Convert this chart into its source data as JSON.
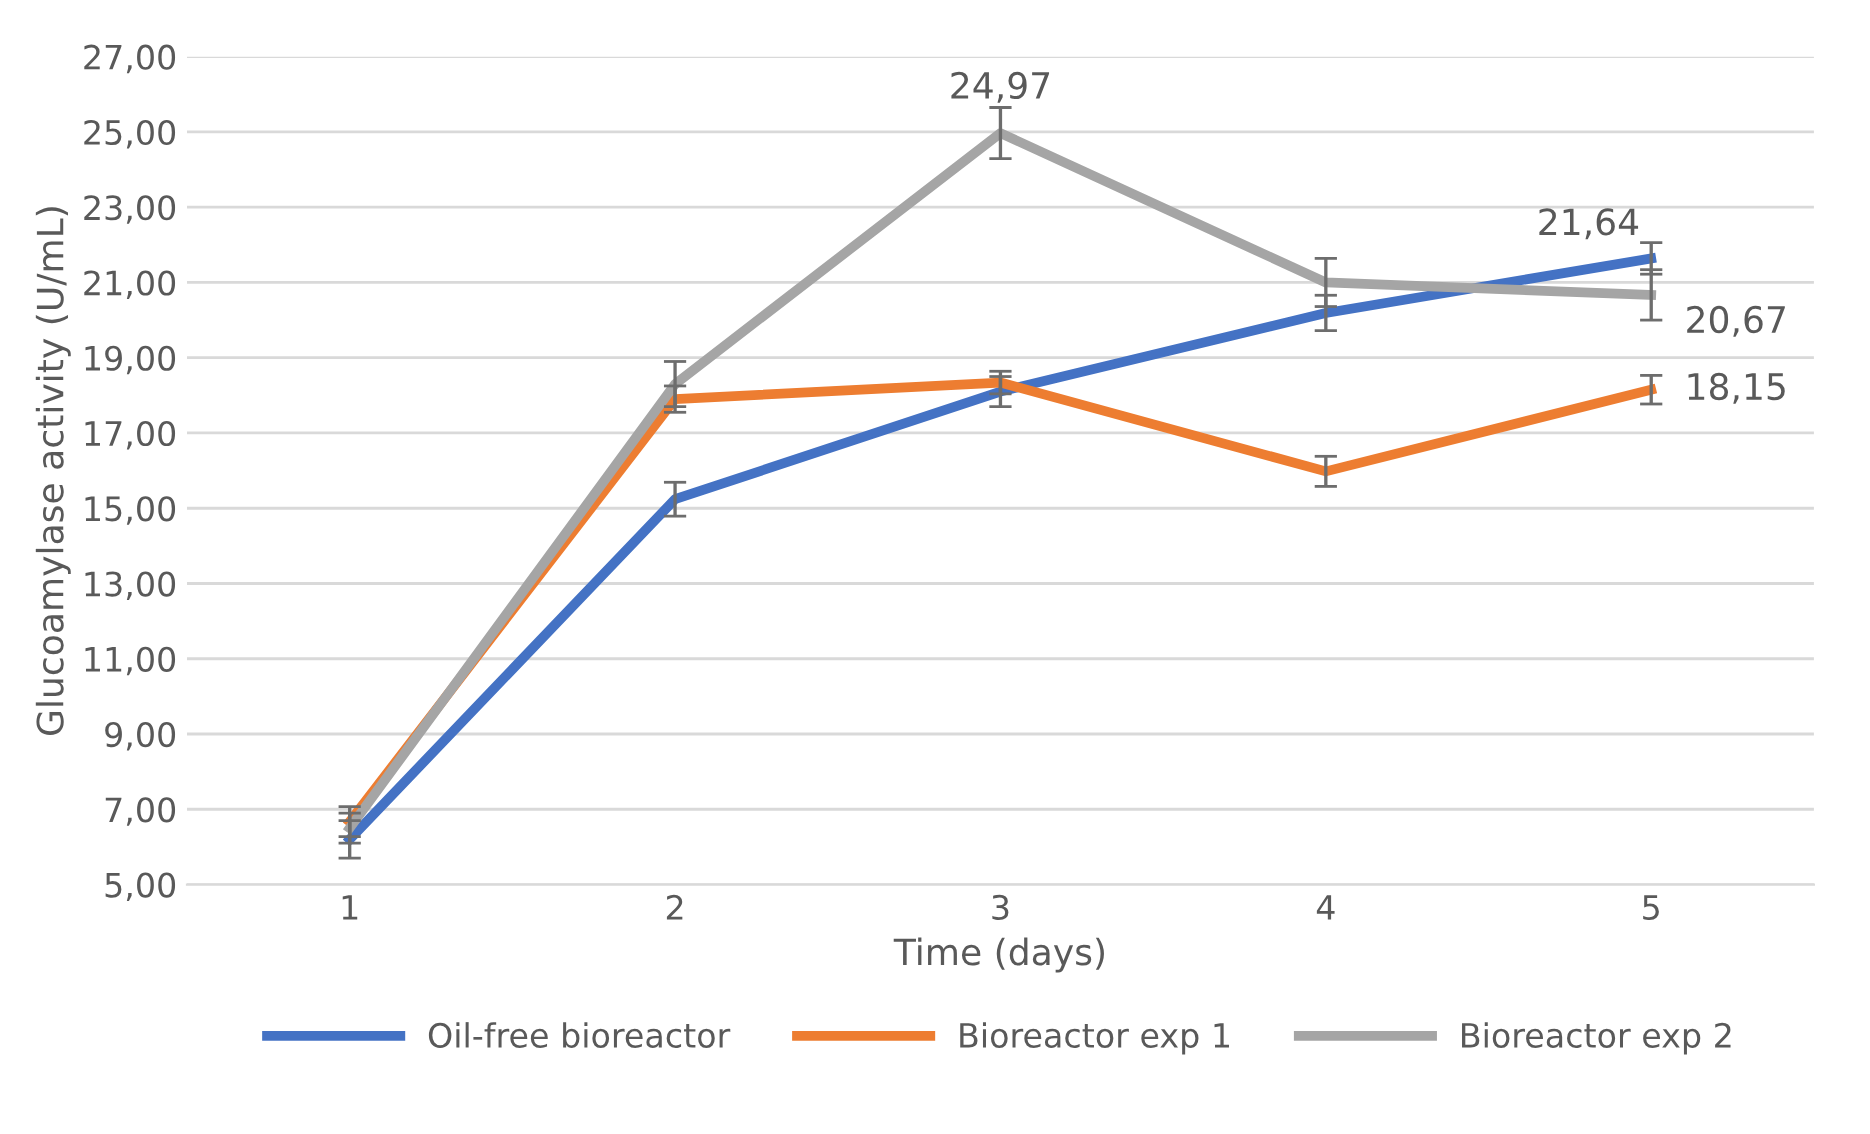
{
  "chart_data": {
    "type": "line",
    "xlabel": "Time (days)",
    "ylabel": "Glucoamylase activity (U/mL)",
    "categories": [
      "1",
      "2",
      "3",
      "4",
      "5"
    ],
    "series": [
      {
        "name": "Oil-free bioreactor",
        "color": "#4472c4",
        "values": [
          6.2,
          15.24,
          18.1,
          20.19,
          21.64
        ],
        "errors": [
          0.5,
          0.45,
          0.4,
          0.47,
          0.42
        ],
        "value_labels": [
          null,
          null,
          null,
          null,
          "21,64"
        ]
      },
      {
        "name": "Bioreactor exp 1",
        "color": "#ed7d31",
        "values": [
          6.67,
          17.9,
          18.34,
          15.98,
          18.15
        ],
        "errors": [
          0.4,
          0.35,
          0.3,
          0.4,
          0.38
        ],
        "value_labels": [
          null,
          null,
          null,
          null,
          "18,15"
        ]
      },
      {
        "name": "Bioreactor exp 2",
        "color": "#a5a5a5",
        "values": [
          6.5,
          18.3,
          24.97,
          21.0,
          20.67
        ],
        "errors": [
          0.4,
          0.6,
          0.68,
          0.64,
          0.67
        ],
        "value_labels": [
          null,
          null,
          "24,97",
          null,
          "20,67"
        ]
      }
    ],
    "ylim": [
      5,
      27
    ],
    "yticks": [
      {
        "value": 5,
        "label": "5,00"
      },
      {
        "value": 7,
        "label": "7,00"
      },
      {
        "value": 9,
        "label": "9,00"
      },
      {
        "value": 11,
        "label": "11,00"
      },
      {
        "value": 13,
        "label": "13,00"
      },
      {
        "value": 15,
        "label": "15,00"
      },
      {
        "value": 17,
        "label": "17,00"
      },
      {
        "value": 19,
        "label": "19,00"
      },
      {
        "value": 21,
        "label": "21,00"
      },
      {
        "value": 23,
        "label": "23,00"
      },
      {
        "value": 25,
        "label": "25,00"
      },
      {
        "value": 27,
        "label": "27,00"
      }
    ],
    "grid": "y",
    "legend": "bottom",
    "marker": "none",
    "line_style": "solid"
  }
}
